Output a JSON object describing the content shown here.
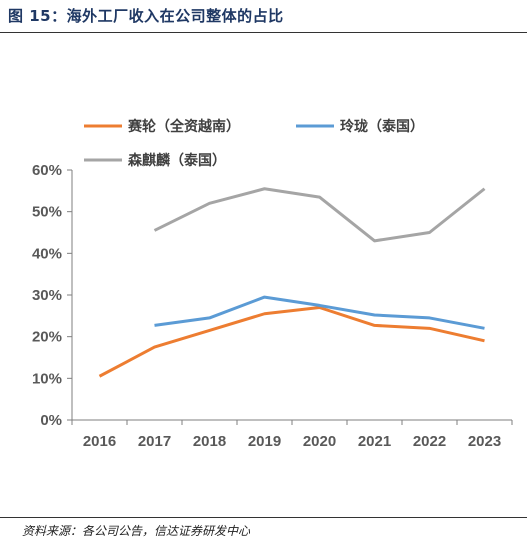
{
  "figure": {
    "title": "图 15：海外工厂收入在公司整体的占比",
    "source": "资料来源：各公司公告，信达证券研发中心"
  },
  "chart_data": {
    "type": "line",
    "title": "",
    "xlabel": "",
    "ylabel": "",
    "x": [
      "2016",
      "2017",
      "2018",
      "2019",
      "2020",
      "2021",
      "2022",
      "2023"
    ],
    "ylim": [
      0,
      60
    ],
    "y_ticks": [
      "0%",
      "10%",
      "20%",
      "30%",
      "40%",
      "50%",
      "60%"
    ],
    "grid": false,
    "legend_position": "top",
    "series": [
      {
        "name": "赛轮（全资越南）",
        "color": "#ED7D31",
        "values": [
          10.5,
          17.5,
          21.5,
          25.5,
          27.0,
          22.7,
          22.0,
          19.0
        ]
      },
      {
        "name": "玲珑（泰国）",
        "color": "#5B9BD5",
        "values": [
          null,
          22.7,
          24.5,
          29.5,
          27.5,
          25.2,
          24.5,
          22.0
        ]
      },
      {
        "name": "森麒麟（泰国）",
        "color": "#A5A5A5",
        "values": [
          null,
          45.5,
          52.0,
          55.5,
          53.5,
          43.0,
          45.0,
          55.5
        ]
      }
    ]
  }
}
